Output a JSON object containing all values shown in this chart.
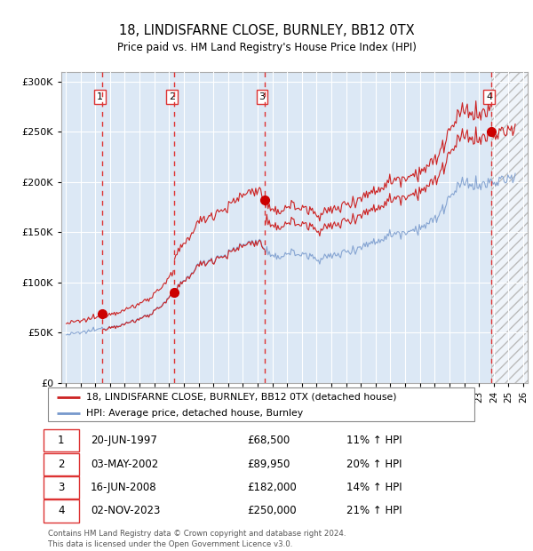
{
  "title": "18, LINDISFARNE CLOSE, BURNLEY, BB12 0TX",
  "subtitle": "Price paid vs. HM Land Registry's House Price Index (HPI)",
  "legend_line1": "18, LINDISFARNE CLOSE, BURNLEY, BB12 0TX (detached house)",
  "legend_line2": "HPI: Average price, detached house, Burnley",
  "table_entries": [
    {
      "num": 1,
      "date": "20-JUN-1997",
      "price": "£68,500",
      "pct": "11% ↑ HPI"
    },
    {
      "num": 2,
      "date": "03-MAY-2002",
      "price": "£89,950",
      "pct": "20% ↑ HPI"
    },
    {
      "num": 3,
      "date": "16-JUN-2008",
      "price": "£182,000",
      "pct": "14% ↑ HPI"
    },
    {
      "num": 4,
      "date": "02-NOV-2023",
      "price": "£250,000",
      "pct": "21% ↑ HPI"
    }
  ],
  "footnote1": "Contains HM Land Registry data © Crown copyright and database right 2024.",
  "footnote2": "This data is licensed under the Open Government Licence v3.0.",
  "sale_dates_num": [
    1997.46,
    2002.34,
    2008.46,
    2023.84
  ],
  "sale_prices": [
    68500,
    89950,
    182000,
    250000
  ],
  "vline_color": "#dd3333",
  "dot_color": "#cc0000",
  "hpi_line_color": "#7799cc",
  "price_line_color": "#cc2222",
  "bg_color": "#dce8f5",
  "ylim": [
    0,
    310000
  ],
  "yticks": [
    0,
    50000,
    100000,
    150000,
    200000,
    250000,
    300000
  ],
  "xlim": [
    1994.7,
    2026.3
  ],
  "xticks": [
    1995,
    1996,
    1997,
    1998,
    1999,
    2000,
    2001,
    2002,
    2003,
    2004,
    2005,
    2006,
    2007,
    2008,
    2009,
    2010,
    2011,
    2012,
    2013,
    2014,
    2015,
    2016,
    2017,
    2018,
    2019,
    2020,
    2021,
    2022,
    2023,
    2024,
    2025,
    2026
  ],
  "hpi_annual": {
    "1994": 46000,
    "1995": 48000,
    "1996": 50000,
    "1997": 53000,
    "1998": 56000,
    "1999": 59000,
    "2000": 64000,
    "2001": 72000,
    "2002": 85000,
    "2003": 102000,
    "2004": 118000,
    "2005": 124000,
    "2006": 129000,
    "2007": 138000,
    "2008": 142000,
    "2009": 123000,
    "2010": 130000,
    "2011": 128000,
    "2012": 124000,
    "2013": 126000,
    "2014": 131000,
    "2015": 136000,
    "2016": 141000,
    "2017": 148000,
    "2018": 151000,
    "2019": 155000,
    "2020": 162000,
    "2021": 185000,
    "2022": 200000,
    "2023": 196000,
    "2024": 200000,
    "2025": 203000,
    "2026": 205000
  }
}
